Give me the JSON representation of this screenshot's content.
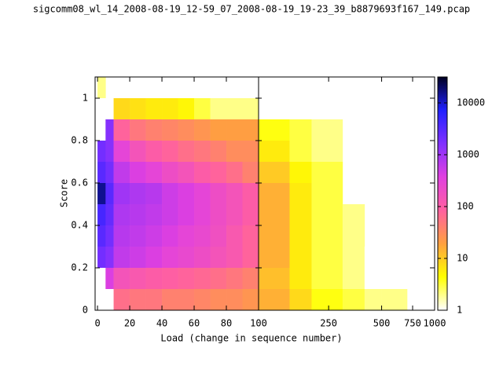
{
  "chart_data": {
    "type": "heatmap",
    "title": "sigcomm08_wl_14_2008-08-19_12-59_07_2008-08-19_19-23_39_b8879693f167_149.pcap",
    "x_label": "Load (change in sequence number)",
    "y_label": "Score",
    "x_bins": [
      0,
      5,
      10,
      20,
      30,
      40,
      50,
      60,
      70,
      80,
      90,
      100,
      150,
      200,
      300,
      400,
      500,
      700,
      1000
    ],
    "y_bins": [
      0,
      0.1,
      0.2,
      0.3,
      0.4,
      0.5,
      0.6,
      0.7,
      0.8,
      0.9,
      1,
      1.1
    ],
    "values": [
      [
        null,
        null,
        60,
        50,
        50,
        40,
        40,
        35,
        30,
        30,
        25,
        15,
        8,
        4,
        3,
        2,
        2,
        1
      ],
      [
        null,
        400,
        150,
        120,
        100,
        90,
        80,
        70,
        60,
        50,
        40,
        12,
        6,
        3,
        2,
        1,
        null,
        null
      ],
      [
        2000,
        1500,
        600,
        500,
        400,
        300,
        250,
        200,
        150,
        120,
        80,
        15,
        6,
        3,
        2,
        1,
        null,
        null
      ],
      [
        3000,
        2000,
        700,
        600,
        500,
        400,
        300,
        250,
        180,
        120,
        80,
        15,
        6,
        3,
        2,
        null,
        null,
        null
      ],
      [
        4000,
        2500,
        800,
        700,
        600,
        500,
        400,
        300,
        200,
        150,
        100,
        15,
        6,
        3,
        2,
        null,
        null,
        null
      ],
      [
        15000,
        3000,
        1000,
        800,
        700,
        500,
        400,
        300,
        200,
        150,
        100,
        15,
        6,
        3,
        null,
        null,
        null,
        null
      ],
      [
        3000,
        2000,
        600,
        400,
        300,
        200,
        150,
        100,
        80,
        60,
        40,
        10,
        5,
        3,
        null,
        null,
        null,
        null
      ],
      [
        2000,
        1500,
        300,
        150,
        100,
        80,
        60,
        50,
        40,
        30,
        30,
        6,
        3,
        2,
        null,
        null,
        null,
        null
      ],
      [
        null,
        1500,
        80,
        50,
        40,
        35,
        30,
        25,
        20,
        20,
        20,
        4,
        3,
        2,
        null,
        null,
        null,
        null
      ],
      [
        null,
        null,
        8,
        7,
        6,
        6,
        5,
        3,
        2,
        2,
        2,
        1,
        null,
        null,
        null,
        null,
        null,
        null
      ],
      [
        2,
        null,
        null,
        null,
        null,
        null,
        null,
        null,
        null,
        null,
        null,
        null,
        null,
        null,
        null,
        null,
        null,
        null
      ]
    ],
    "x_panels": [
      {
        "scale": "linear",
        "xlim": [
          -1.5,
          100
        ],
        "xticks": [
          0,
          20,
          40,
          60,
          80,
          100
        ]
      },
      {
        "scale": "log",
        "xlim": [
          100,
          1000
        ],
        "xticks": [
          250,
          500,
          750,
          1000
        ]
      }
    ],
    "ylim": [
      0,
      1.1
    ],
    "yticks": [
      0,
      0.2,
      0.4,
      0.6,
      0.8,
      1
    ],
    "zlim": [
      1,
      31623
    ],
    "z_scale": "log",
    "zticks": [
      1,
      10,
      100,
      1000,
      10000
    ],
    "palette": [
      "#ffffff",
      "#ffff00",
      "#ffa040",
      "#ff60a0",
      "#e040e0",
      "#8030ff",
      "#2020ff",
      "#000020"
    ]
  }
}
